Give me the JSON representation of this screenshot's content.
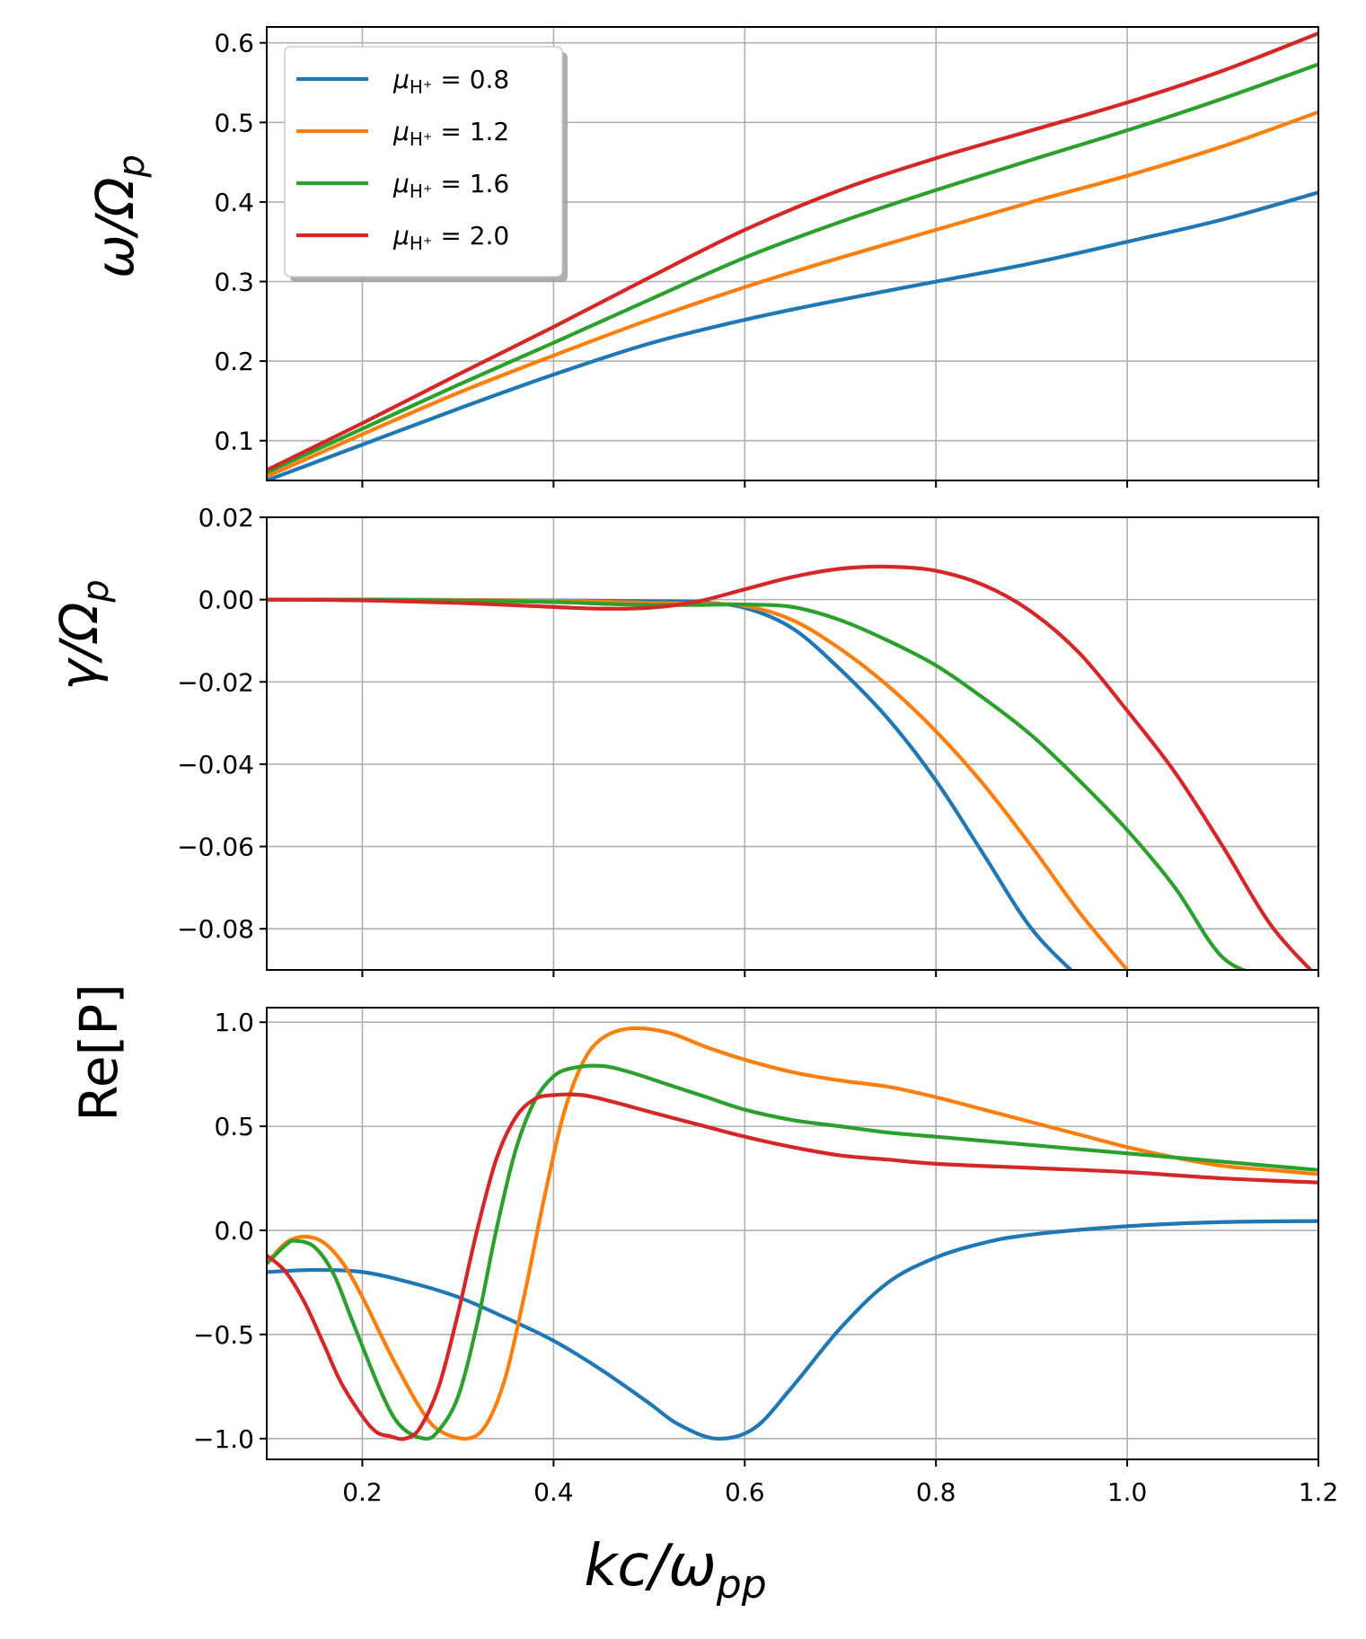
{
  "chart_data": [
    {
      "type": "line",
      "panel": "top",
      "ylabel": "ω/Ω_p",
      "xlim": [
        0.1,
        1.2
      ],
      "ylim": [
        0.05,
        0.62
      ],
      "xticks": [
        0.2,
        0.4,
        0.6,
        0.8,
        1.0,
        1.2
      ],
      "yticks": [
        0.1,
        0.2,
        0.3,
        0.4,
        0.5,
        0.6
      ],
      "ytick_labels": [
        "0.1",
        "0.2",
        "0.3",
        "0.4",
        "0.5",
        "0.6"
      ],
      "x": [
        0.1,
        0.2,
        0.3,
        0.4,
        0.5,
        0.6,
        0.7,
        0.8,
        0.9,
        1.0,
        1.1,
        1.2
      ],
      "series": [
        {
          "name": "μH+ = 0.8",
          "color": "#1f77b4",
          "values": [
            0.05,
            0.095,
            0.14,
            0.183,
            0.222,
            0.252,
            0.277,
            0.3,
            0.323,
            0.35,
            0.378,
            0.412
          ]
        },
        {
          "name": "μH+ = 1.2",
          "color": "#ff7f0e",
          "values": [
            0.055,
            0.108,
            0.16,
            0.207,
            0.252,
            0.293,
            0.33,
            0.365,
            0.4,
            0.433,
            0.47,
            0.513
          ]
        },
        {
          "name": "μH+ = 1.6",
          "color": "#2ca02c",
          "values": [
            0.06,
            0.115,
            0.17,
            0.223,
            0.277,
            0.33,
            0.375,
            0.415,
            0.453,
            0.49,
            0.53,
            0.573
          ]
        },
        {
          "name": "μH+ = 2.0",
          "color": "#d62728",
          "values": [
            0.063,
            0.122,
            0.183,
            0.243,
            0.305,
            0.365,
            0.415,
            0.455,
            0.49,
            0.525,
            0.565,
            0.612
          ]
        }
      ]
    },
    {
      "type": "line",
      "panel": "middle",
      "ylabel": "γ/Ω_p",
      "xlim": [
        0.1,
        1.2
      ],
      "ylim": [
        -0.09,
        0.02
      ],
      "xticks": [
        0.2,
        0.4,
        0.6,
        0.8,
        1.0,
        1.2
      ],
      "yticks": [
        0.02,
        0.0,
        -0.02,
        -0.04,
        -0.06,
        -0.08
      ],
      "ytick_labels": [
        "0.02",
        "0.00",
        "−0.02",
        "−0.04",
        "−0.06",
        "−0.08"
      ],
      "x": [
        0.1,
        0.2,
        0.3,
        0.4,
        0.45,
        0.5,
        0.55,
        0.6,
        0.65,
        0.7,
        0.75,
        0.8,
        0.85,
        0.9,
        0.95,
        1.0,
        1.05,
        1.1,
        1.15,
        1.2
      ],
      "series": [
        {
          "name": "μH+ = 0.8",
          "color": "#1f77b4",
          "values": [
            0.0,
            0.0,
            -0.0001,
            -0.0002,
            -0.0003,
            -0.0004,
            -0.0006,
            -0.002,
            -0.007,
            -0.017,
            -0.029,
            -0.044,
            -0.062,
            -0.08,
            -0.092,
            null,
            null,
            null,
            null,
            null
          ]
        },
        {
          "name": "μH+ = 1.2",
          "color": "#ff7f0e",
          "values": [
            0.0,
            0.0,
            -0.0001,
            -0.0003,
            -0.0005,
            -0.0008,
            -0.001,
            -0.0015,
            -0.005,
            -0.012,
            -0.021,
            -0.032,
            -0.045,
            -0.06,
            -0.076,
            -0.09,
            null,
            null,
            null,
            null
          ]
        },
        {
          "name": "μH+ = 1.6",
          "color": "#2ca02c",
          "values": [
            0.0,
            0.0,
            -0.0002,
            -0.0006,
            -0.001,
            -0.0013,
            -0.0013,
            -0.0012,
            -0.0018,
            -0.005,
            -0.01,
            -0.016,
            -0.024,
            -0.033,
            -0.044,
            -0.056,
            -0.07,
            -0.087,
            -0.092,
            null
          ]
        },
        {
          "name": "μH+ = 2.0",
          "color": "#d62728",
          "values": [
            0.0,
            -0.0002,
            -0.0008,
            -0.0018,
            -0.0022,
            -0.002,
            -0.0005,
            0.0025,
            0.0055,
            0.0075,
            0.008,
            0.007,
            0.0035,
            -0.003,
            -0.013,
            -0.027,
            -0.042,
            -0.06,
            -0.079,
            -0.092
          ]
        }
      ]
    },
    {
      "type": "line",
      "panel": "bottom",
      "ylabel": "Re[P]",
      "xlabel": "kc/ω_pp",
      "xlim": [
        0.1,
        1.2
      ],
      "ylim": [
        -1.1,
        1.07
      ],
      "xticks": [
        0.2,
        0.4,
        0.6,
        0.8,
        1.0,
        1.2
      ],
      "xtick_labels": [
        "0.2",
        "0.4",
        "0.6",
        "0.8",
        "1.0",
        "1.2"
      ],
      "yticks": [
        1.0,
        0.5,
        0.0,
        -0.5,
        -1.0
      ],
      "ytick_labels": [
        "1.0",
        "0.5",
        "0.0",
        "−0.5",
        "−1.0"
      ],
      "series": [
        {
          "name": "μH+ = 0.8",
          "color": "#1f77b4",
          "x": [
            0.1,
            0.15,
            0.2,
            0.25,
            0.3,
            0.35,
            0.4,
            0.45,
            0.5,
            0.53,
            0.57,
            0.61,
            0.65,
            0.7,
            0.75,
            0.8,
            0.85,
            0.9,
            1.0,
            1.1,
            1.2
          ],
          "values": [
            -0.2,
            -0.19,
            -0.2,
            -0.25,
            -0.32,
            -0.42,
            -0.53,
            -0.67,
            -0.83,
            -0.93,
            -1.0,
            -0.95,
            -0.75,
            -0.47,
            -0.25,
            -0.13,
            -0.06,
            -0.02,
            0.02,
            0.04,
            0.045
          ]
        },
        {
          "name": "μH+ = 1.2",
          "color": "#ff7f0e",
          "x": [
            0.1,
            0.12,
            0.14,
            0.16,
            0.18,
            0.2,
            0.23,
            0.26,
            0.28,
            0.31,
            0.33,
            0.35,
            0.37,
            0.39,
            0.41,
            0.43,
            0.45,
            0.48,
            0.52,
            0.56,
            0.6,
            0.65,
            0.7,
            0.75,
            0.8,
            0.85,
            0.9,
            0.95,
            1.0,
            1.05,
            1.1,
            1.15,
            1.2
          ],
          "values": [
            -0.16,
            -0.06,
            -0.03,
            -0.06,
            -0.16,
            -0.32,
            -0.6,
            -0.85,
            -0.96,
            -1.0,
            -0.93,
            -0.7,
            -0.3,
            0.15,
            0.55,
            0.8,
            0.92,
            0.97,
            0.95,
            0.88,
            0.82,
            0.76,
            0.72,
            0.69,
            0.64,
            0.58,
            0.52,
            0.46,
            0.4,
            0.35,
            0.31,
            0.29,
            0.27
          ]
        },
        {
          "name": "μH+ = 1.6",
          "color": "#2ca02c",
          "x": [
            0.1,
            0.12,
            0.13,
            0.15,
            0.17,
            0.19,
            0.22,
            0.24,
            0.265,
            0.28,
            0.3,
            0.32,
            0.34,
            0.36,
            0.38,
            0.4,
            0.42,
            0.45,
            0.48,
            0.52,
            0.56,
            0.6,
            0.65,
            0.7,
            0.75,
            0.8,
            0.85,
            0.9,
            0.95,
            1.0,
            1.05,
            1.1,
            1.15,
            1.2
          ],
          "values": [
            -0.16,
            -0.07,
            -0.05,
            -0.08,
            -0.21,
            -0.44,
            -0.78,
            -0.94,
            -1.0,
            -0.96,
            -0.8,
            -0.45,
            0.0,
            0.38,
            0.62,
            0.74,
            0.78,
            0.79,
            0.76,
            0.7,
            0.64,
            0.58,
            0.53,
            0.5,
            0.47,
            0.45,
            0.43,
            0.41,
            0.39,
            0.37,
            0.35,
            0.33,
            0.31,
            0.29
          ]
        },
        {
          "name": "μH+ = 2.0",
          "color": "#d62728",
          "x": [
            0.1,
            0.12,
            0.14,
            0.16,
            0.18,
            0.21,
            0.23,
            0.245,
            0.26,
            0.28,
            0.3,
            0.32,
            0.34,
            0.36,
            0.38,
            0.4,
            0.43,
            0.46,
            0.5,
            0.55,
            0.6,
            0.65,
            0.7,
            0.75,
            0.8,
            0.9,
            1.0,
            1.1,
            1.2
          ],
          "values": [
            -0.12,
            -0.2,
            -0.35,
            -0.55,
            -0.75,
            -0.95,
            -0.99,
            -1.0,
            -0.95,
            -0.75,
            -0.4,
            0.0,
            0.34,
            0.54,
            0.63,
            0.65,
            0.65,
            0.62,
            0.57,
            0.51,
            0.45,
            0.4,
            0.36,
            0.34,
            0.32,
            0.3,
            0.28,
            0.25,
            0.23
          ]
        }
      ]
    }
  ],
  "legend": {
    "location": "upper-left of top panel",
    "entries": [
      {
        "label": "μH+ = 0.8",
        "mu_text": "μ",
        "sub_text": "H⁺",
        "eq_text": " = 0.8",
        "color": "#1f77b4"
      },
      {
        "label": "μH+ = 1.2",
        "mu_text": "μ",
        "sub_text": "H⁺",
        "eq_text": " = 1.2",
        "color": "#ff7f0e"
      },
      {
        "label": "μH+ = 1.6",
        "mu_text": "μ",
        "sub_text": "H⁺",
        "eq_text": " = 1.6",
        "color": "#2ca02c"
      },
      {
        "label": "μH+ = 2.0",
        "mu_text": "μ",
        "sub_text": "H⁺",
        "eq_text": " = 2.0",
        "color": "#d62728"
      }
    ]
  },
  "labels": {
    "top_ylabel_main": "ω/Ω",
    "top_ylabel_sub": "p",
    "mid_ylabel_main": "γ/Ω",
    "mid_ylabel_sub": "p",
    "bot_ylabel": "Re[P]",
    "xlabel_main": "kc/ω",
    "xlabel_sub": "pp"
  }
}
